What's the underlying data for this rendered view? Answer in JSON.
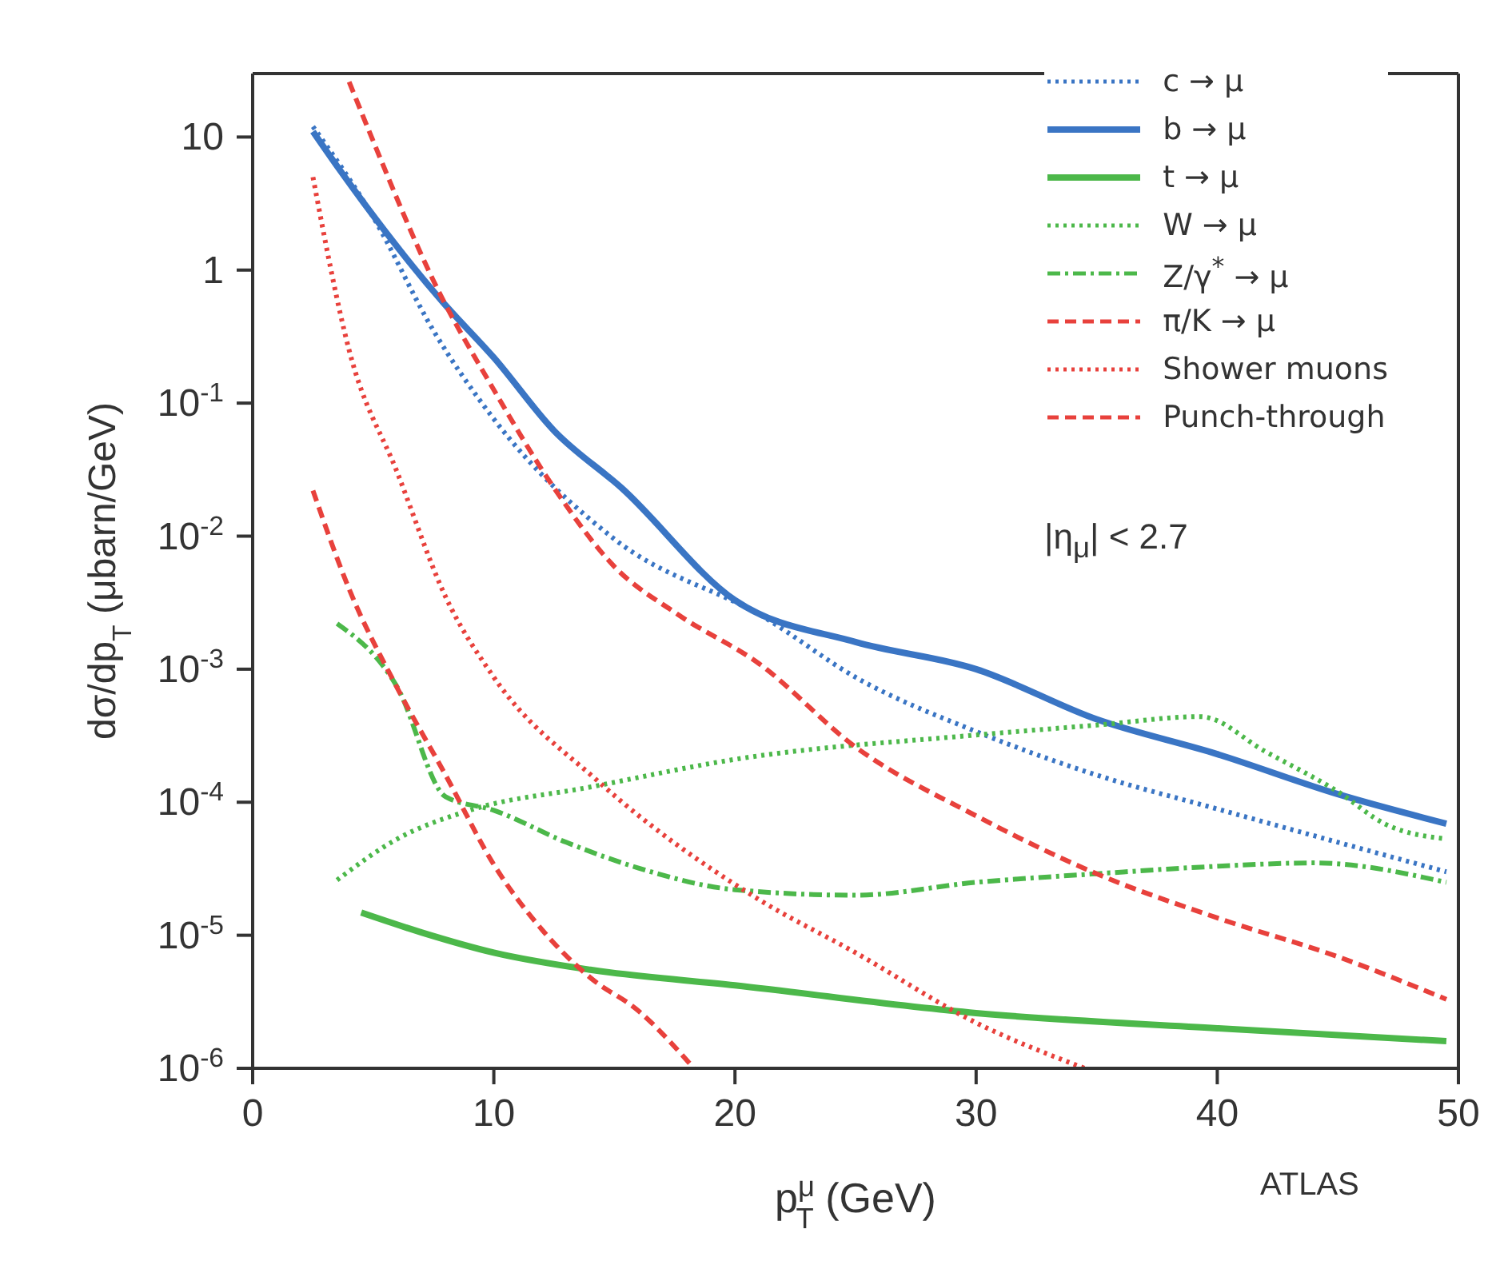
{
  "chart_data": {
    "type": "line",
    "xlabel": "p$^{μ}$$_{T}$ (GeV)",
    "ylabel": "dσ/dp$_{T}$ (μbarn/GeV)",
    "xlim": [
      0,
      50
    ],
    "xticks": [
      0,
      10,
      20,
      30,
      40,
      50
    ],
    "ylim": [
      1e-06,
      30
    ],
    "yticks": [
      {
        "value": 1e-06,
        "label": "10$^{-6}$"
      },
      {
        "value": 1e-05,
        "label": "10$^{-5}$"
      },
      {
        "value": 0.0001,
        "label": "10$^{-4}$"
      },
      {
        "value": 0.001,
        "label": "10$^{-3}$"
      },
      {
        "value": 0.01,
        "label": "10$^{-2}$"
      },
      {
        "value": 0.1,
        "label": "10$^{-1}$"
      },
      1,
      10
    ],
    "log": "y",
    "legend": "top right",
    "marker": "none",
    "annotations": [
      "|η$_{μ}$| < 2.7",
      "ATLAS"
    ],
    "series": [
      {
        "name": "c → μ",
        "color": "#3a75c4",
        "line_style": "dotted",
        "x": [
          2.5,
          5,
          7.5,
          10,
          15,
          21.3,
          25,
          30,
          35,
          40,
          45,
          49.5
        ],
        "values": [
          12,
          2.5,
          0.35,
          0.076,
          0.0095,
          0.0024,
          0.00087,
          0.00034,
          0.00016,
          8.9e-05,
          5e-05,
          3e-05
        ]
      },
      {
        "name": "b → μ",
        "color": "#3a75c4",
        "line_style": "solid",
        "x": [
          2.5,
          3.6,
          7.9,
          10,
          12.5,
          15.3,
          20,
          25,
          30,
          35,
          40,
          45,
          49.5
        ],
        "values": [
          11,
          5.7,
          0.57,
          0.22,
          0.062,
          0.023,
          0.0033,
          0.0016,
          0.001,
          0.00042,
          0.00023,
          0.000115,
          6.9e-05
        ]
      },
      {
        "name": "t → μ",
        "color": "#4cb84a",
        "line_style": "solid",
        "x": [
          4.5,
          7,
          10,
          14,
          20,
          30,
          40,
          49.5
        ],
        "values": [
          1.48e-05,
          1.05e-05,
          7.4e-06,
          5.5e-06,
          4.2e-06,
          2.6e-06,
          2e-06,
          1.6e-06
        ]
      },
      {
        "name": "W → μ",
        "color": "#4cb84a",
        "line_style": "dotted",
        "x": [
          3.5,
          6,
          9,
          14,
          20,
          30,
          35,
          39.3,
          42,
          45,
          47,
          49.5
        ],
        "values": [
          2.6e-05,
          5.3e-05,
          8.7e-05,
          0.00013,
          0.00021,
          0.00032,
          0.00038,
          0.00044,
          0.00024,
          0.00012,
          6.8e-05,
          5.3e-05
        ]
      },
      {
        "name": "Z/γ$^{*}$ → μ",
        "color": "#4cb84a",
        "line_style": "dashdot",
        "x": [
          3.5,
          6,
          8,
          10,
          13,
          16,
          20,
          25,
          30,
          35,
          40,
          44,
          49.5
        ],
        "values": [
          0.0022,
          0.00073,
          0.00011,
          8.7e-05,
          5e-05,
          3.2e-05,
          2.2e-05,
          2e-05,
          2.5e-05,
          2.9e-05,
          3.3e-05,
          3.5e-05,
          2.5e-05
        ]
      },
      {
        "name": "π/K → μ",
        "color": "#e8413c",
        "line_style": "dashed",
        "x": [
          4,
          5,
          7.5,
          10,
          12.5,
          15,
          17.6,
          21,
          25,
          30,
          35,
          40,
          45,
          49.5
        ],
        "values": [
          26,
          9.3,
          0.83,
          0.126,
          0.023,
          0.0059,
          0.0026,
          0.0011,
          0.00026,
          7.9e-05,
          2.9e-05,
          1.35e-05,
          6.9e-06,
          3.3e-06
        ]
      },
      {
        "name": "Shower muons",
        "color": "#e8413c",
        "line_style": "dotted",
        "x": [
          2.5,
          4,
          6,
          8,
          10,
          14.3,
          20.9,
          25,
          30,
          34.5
        ],
        "values": [
          5,
          0.25,
          0.03,
          0.0035,
          0.00087,
          0.000145,
          1.9e-05,
          7.4e-06,
          2.2e-06,
          1e-06
        ]
      },
      {
        "name": "Punch-through",
        "color": "#e8413c",
        "line_style": "dashed",
        "x": [
          2.5,
          4,
          6,
          8,
          10,
          12,
          14,
          16,
          18.3
        ],
        "values": [
          0.022,
          0.004,
          0.00072,
          0.00016,
          3.4e-05,
          1.1e-05,
          4.8e-06,
          2.7e-06,
          1e-06
        ]
      }
    ]
  }
}
